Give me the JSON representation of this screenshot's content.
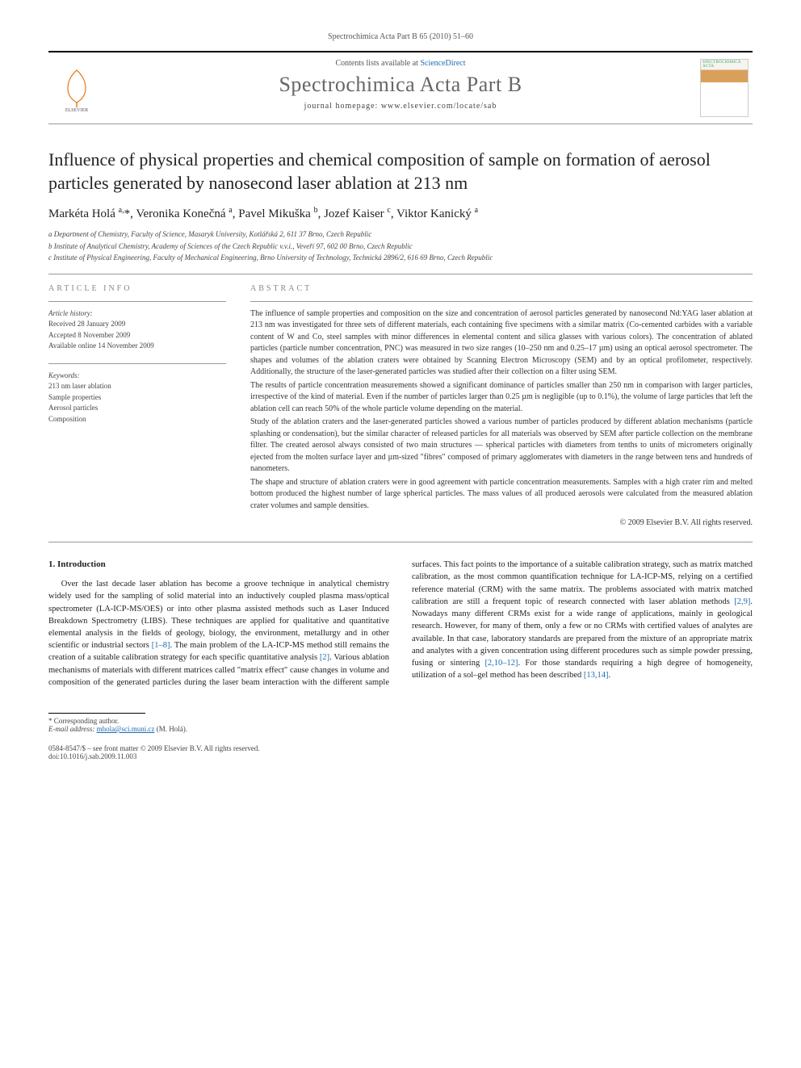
{
  "citation": "Spectrochimica Acta Part B 65 (2010) 51–60",
  "header": {
    "contents_prefix": "Contents lists available at ",
    "contents_link": "ScienceDirect",
    "journal": "Spectrochimica Acta Part B",
    "homepage_prefix": "journal homepage: ",
    "homepage": "www.elsevier.com/locate/sab",
    "cover_label": "SPECTROCHIMICA ACTA"
  },
  "title": "Influence of physical properties and chemical composition of sample on formation of aerosol particles generated by nanosecond laser ablation at 213 nm",
  "authors_html": "Markéta Holá <sup>a,</sup>*, Veronika Konečná <sup>a</sup>, Pavel Mikuška <sup>b</sup>, Jozef Kaiser <sup>c</sup>, Viktor Kanický <sup>a</sup>",
  "affiliations": [
    "a Department of Chemistry, Faculty of Science, Masaryk University, Kotlářská 2, 611 37 Brno, Czech Republic",
    "b Institute of Analytical Chemistry, Academy of Sciences of the Czech Republic v.v.i., Veveří 97, 602 00 Brno, Czech Republic",
    "c Institute of Physical Engineering, Faculty of Mechanical Engineering, Brno University of Technology, Technická 2896/2, 616 69 Brno, Czech Republic"
  ],
  "article_info": {
    "heading": "article info",
    "history_label": "Article history:",
    "history": [
      "Received 28 January 2009",
      "Accepted 8 November 2009",
      "Available online 14 November 2009"
    ],
    "keywords_label": "Keywords:",
    "keywords": [
      "213 nm laser ablation",
      "Sample properties",
      "Aerosol particles",
      "Composition"
    ]
  },
  "abstract": {
    "heading": "abstract",
    "paragraphs": [
      "The influence of sample properties and composition on the size and concentration of aerosol particles generated by nanosecond Nd:YAG laser ablation at 213 nm was investigated for three sets of different materials, each containing five specimens with a similar matrix (Co-cemented carbides with a variable content of W and Co, steel samples with minor differences in elemental content and silica glasses with various colors). The concentration of ablated particles (particle number concentration, PNC) was measured in two size ranges (10–250 nm and 0.25–17 µm) using an optical aerosol spectrometer. The shapes and volumes of the ablation craters were obtained by Scanning Electron Microscopy (SEM) and by an optical profilometer, respectively. Additionally, the structure of the laser-generated particles was studied after their collection on a filter using SEM.",
      "The results of particle concentration measurements showed a significant dominance of particles smaller than 250 nm in comparison with larger particles, irrespective of the kind of material. Even if the number of particles larger than 0.25 µm is negligible (up to 0.1%), the volume of large particles that left the ablation cell can reach 50% of the whole particle volume depending on the material.",
      "Study of the ablation craters and the laser-generated particles showed a various number of particles produced by different ablation mechanisms (particle splashing or condensation), but the similar character of released particles for all materials was observed by SEM after particle collection on the membrane filter. The created aerosol always consisted of two main structures — spherical particles with diameters from tenths to units of micrometers originally ejected from the molten surface layer and µm-sized \"fibres\" composed of primary agglomerates with diameters in the range between tens and hundreds of nanometers.",
      "The shape and structure of ablation craters were in good agreement with particle concentration measurements. Samples with a high crater rim and melted bottom produced the highest number of large spherical particles. The mass values of all produced aerosols were calculated from the measured ablation crater volumes and sample densities."
    ],
    "copyright": "© 2009 Elsevier B.V. All rights reserved."
  },
  "body": {
    "section_heading": "1. Introduction",
    "p1": "Over the last decade laser ablation has become a groove technique in analytical chemistry widely used for the sampling of solid material into an inductively coupled plasma mass/optical spectrometer (LA-ICP-MS/OES) or into other plasma assisted methods such as Laser Induced Breakdown Spectrometry (LIBS). These techniques are applied for qualitative and quantitative elemental analysis in the fields of geology, biology, the environment, metallurgy and in other scientific or industrial sectors ",
    "p1_ref1": "[1–8]",
    "p1b": ". The main problem of the LA-ICP-MS method still remains the creation of a suitable calibration strategy for each specific quantitative analysis ",
    "p1_ref2": "[2]",
    "p1c": ". Various ablation mechanisms of materials",
    "p2a": "with different matrices called \"matrix effect\" cause changes in volume and composition of the generated particles during the laser beam interaction with the different sample surfaces. This fact points to the importance of a suitable calibration strategy, such as matrix matched calibration, as the most common quantification technique for LA-ICP-MS, relying on a certified reference material (CRM) with the same matrix. The problems associated with matrix matched calibration are still a frequent topic of research connected with laser ablation methods ",
    "p2_ref1": "[2,9]",
    "p2b": ". Nowadays many different CRMs exist for a wide range of applications, mainly in geological research. However, for many of them, only a few or no CRMs with certified values of analytes are available. In that case, laboratory standards are prepared from the mixture of an appropriate matrix and analytes with a given concentration using different procedures such as simple powder pressing, fusing or sintering ",
    "p2_ref2": "[2,10–12]",
    "p2c": ". For those standards requiring a high degree of homogeneity, utilization of a sol–gel method has been described ",
    "p2_ref3": "[13,14]",
    "p2d": "."
  },
  "footer": {
    "corr": "* Corresponding author.",
    "email_label": "E-mail address:",
    "email": "mhola@sci.muni.cz",
    "email_who": "(M. Holá).",
    "issn_line": "0584-8547/$ – see front matter © 2009 Elsevier B.V. All rights reserved.",
    "doi": "doi:10.1016/j.sab.2009.11.003"
  },
  "colors": {
    "link": "#1a6bb3",
    "text": "#333333",
    "muted": "#888888",
    "rule": "#999999"
  }
}
